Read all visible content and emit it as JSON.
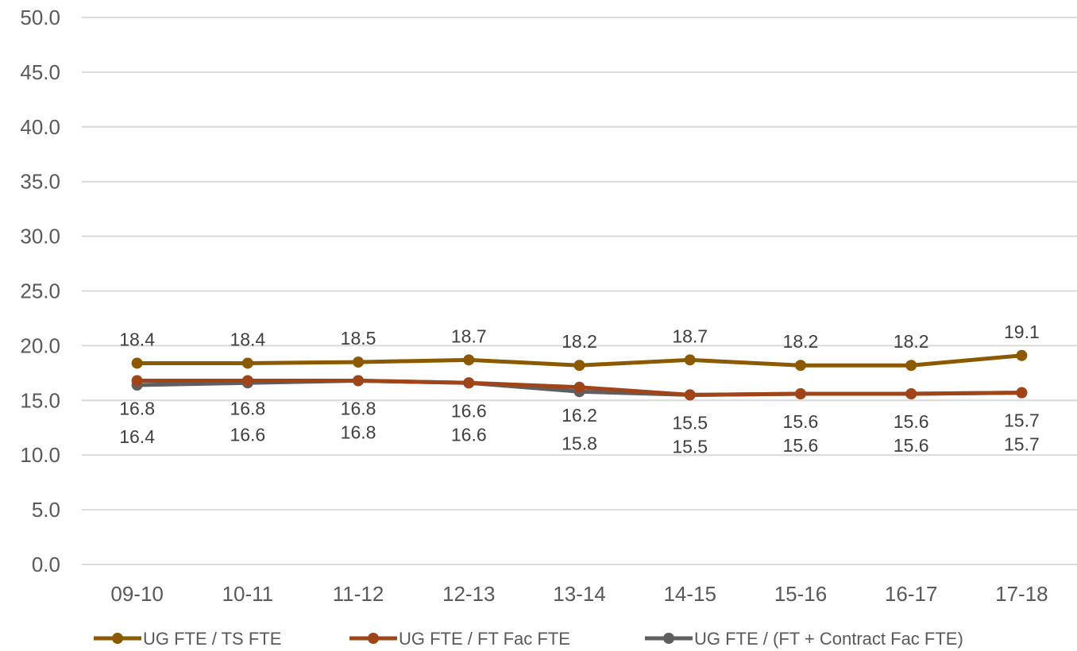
{
  "chart_data": {
    "type": "line",
    "categories": [
      "09-10",
      "10-11",
      "11-12",
      "12-13",
      "13-14",
      "14-15",
      "15-16",
      "16-17",
      "17-18"
    ],
    "series": [
      {
        "name": "UG FTE / TS FTE",
        "color": "#8B5A00",
        "values": [
          18.4,
          18.4,
          18.5,
          18.7,
          18.2,
          18.7,
          18.2,
          18.2,
          19.1
        ],
        "labels": [
          "18.4",
          "18.4",
          "18.5",
          "18.7",
          "18.2",
          "18.7",
          "18.2",
          "18.2",
          "19.1"
        ]
      },
      {
        "name": "UG FTE / FT Fac FTE",
        "color": "#A0451A",
        "values": [
          16.8,
          16.8,
          16.8,
          16.6,
          16.2,
          15.5,
          15.6,
          15.6,
          15.7
        ],
        "labels": [
          "16.8",
          "16.8",
          "16.8",
          "16.6",
          "16.2",
          "15.5",
          "15.6",
          "15.6",
          "15.7"
        ]
      },
      {
        "name": "UG FTE / (FT + Contract Fac FTE)",
        "color": "#5F5F5F",
        "values": [
          16.4,
          16.6,
          16.8,
          16.6,
          15.8,
          15.5,
          15.6,
          15.6,
          15.7
        ],
        "labels": [
          "16.4",
          "16.6",
          "16.8",
          "16.6",
          "15.8",
          "15.5",
          "15.6",
          "15.6",
          "15.7"
        ]
      }
    ],
    "y_ticks": [
      "0.0",
      "5.0",
      "10.0",
      "15.0",
      "20.0",
      "25.0",
      "30.0",
      "35.0",
      "40.0",
      "45.0",
      "50.0"
    ],
    "ylim": [
      0,
      50
    ],
    "grid": true,
    "legend_position": "bottom"
  }
}
